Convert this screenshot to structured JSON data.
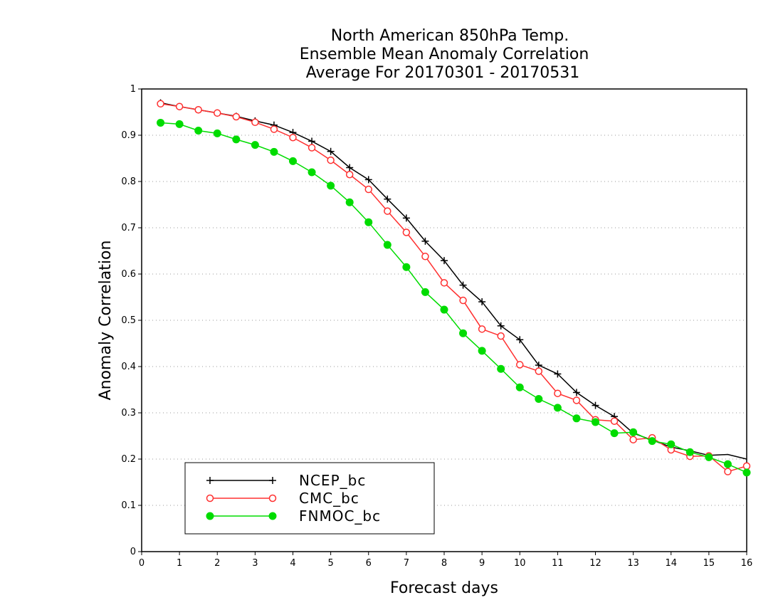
{
  "chart_data": {
    "type": "line",
    "title": [
      "North American 850hPa Temp.",
      "Ensemble Mean Anomaly Correlation",
      "Average For 20170301 - 20170531"
    ],
    "xlabel": "Forecast days",
    "ylabel": "Anomaly Correlation",
    "xlim": [
      0,
      16
    ],
    "ylim": [
      0,
      1
    ],
    "xticks": [
      "0",
      "1",
      "2",
      "3",
      "4",
      "5",
      "6",
      "7",
      "8",
      "9",
      "10",
      "11",
      "12",
      "13",
      "14",
      "15",
      "16"
    ],
    "yticks": [
      "0",
      "0.1",
      "0.2",
      "0.3",
      "0.4",
      "0.5",
      "0.6",
      "0.7",
      "0.8",
      "0.9",
      "1"
    ],
    "grid": "horizontal dotted",
    "legend_position": "bottom-left",
    "x": [
      0.5,
      1,
      1.5,
      2,
      2.5,
      3,
      3.5,
      4,
      4.5,
      5,
      5.5,
      6,
      6.5,
      7,
      7.5,
      8,
      8.5,
      9,
      9.5,
      10,
      10.5,
      11,
      11.5,
      12,
      12.5,
      13,
      13.5,
      14,
      14.5,
      15,
      15.5,
      16
    ],
    "series": [
      {
        "name": "NCEP_bc",
        "color": "#000000",
        "marker": "plus",
        "values": [
          0.97,
          0.962,
          0.955,
          0.948,
          0.941,
          0.931,
          0.922,
          0.906,
          0.887,
          0.865,
          0.83,
          0.804,
          0.762,
          0.721,
          0.671,
          0.629,
          0.576,
          0.54,
          0.488,
          0.458,
          0.403,
          0.384,
          0.344,
          0.316,
          0.292,
          null,
          null,
          null,
          null,
          null,
          null,
          null
        ]
      },
      {
        "name": "CMC_bc",
        "color": "#ff3030",
        "marker": "open-circle",
        "values": [
          0.968,
          0.962,
          0.955,
          0.948,
          0.94,
          0.928,
          0.913,
          0.895,
          0.873,
          0.846,
          0.815,
          0.783,
          0.736,
          0.69,
          0.638,
          0.581,
          0.543,
          0.481,
          0.466,
          0.404,
          0.39,
          0.342,
          0.327,
          0.285,
          0.282,
          0.242,
          0.246,
          0.22,
          0.206,
          0.207,
          0.173,
          0.185
        ]
      },
      {
        "name": "FNMOC_bc",
        "color": "#00dc00",
        "marker": "filled-circle",
        "values": [
          0.927,
          0.924,
          0.91,
          0.904,
          0.891,
          0.879,
          0.864,
          0.844,
          0.82,
          0.791,
          0.755,
          0.712,
          0.663,
          0.615,
          0.561,
          0.523,
          0.472,
          0.434,
          0.395,
          0.355,
          0.33,
          0.311,
          0.288,
          0.28,
          0.256,
          0.258,
          0.239,
          0.232,
          0.215,
          0.204,
          0.189,
          0.171
        ]
      }
    ],
    "tail": {
      "NCEP_bc": [
        [
          13,
          0.256
        ],
        [
          13.5,
          0.241
        ],
        [
          14,
          0.226
        ],
        [
          14.5,
          0.218
        ],
        [
          15,
          0.208
        ],
        [
          15.5,
          0.21
        ],
        [
          16,
          0.2
        ]
      ]
    }
  }
}
